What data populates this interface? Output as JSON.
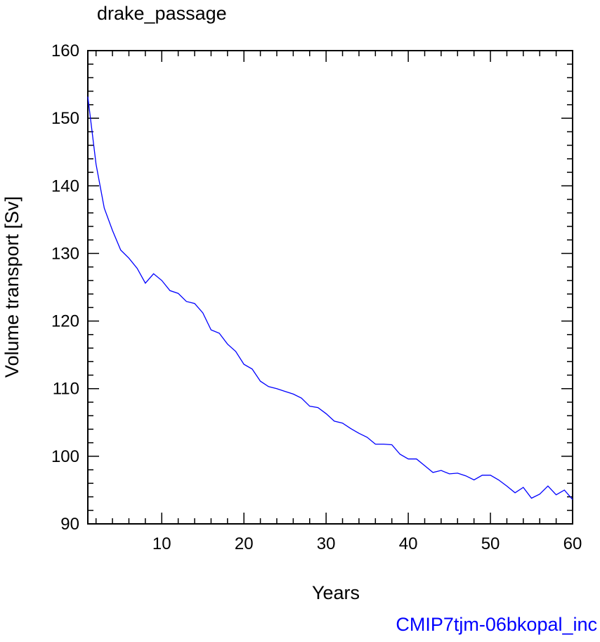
{
  "chart_data": {
    "type": "line",
    "title": "drake_passage",
    "xlabel": "Years",
    "ylabel": "Volume transport [Sv]",
    "xlim": [
      1,
      60
    ],
    "ylim": [
      90,
      160
    ],
    "xticks": [
      10,
      20,
      30,
      40,
      50,
      60
    ],
    "yticks": [
      90,
      100,
      110,
      120,
      130,
      140,
      150,
      160
    ],
    "xtick_labels": [
      "10",
      "20",
      "30",
      "40",
      "50",
      "60"
    ],
    "ytick_labels": [
      "90",
      "100",
      "110",
      "120",
      "130",
      "140",
      "150",
      "160"
    ],
    "x_minor_step": 2,
    "y_minor_step": 2,
    "grid": false,
    "annotation": "CMIP7tjm-06bkopal_inc",
    "colors": {
      "line": "#0000ff",
      "annotation": "#0000ff",
      "axes": "#000000"
    },
    "series": [
      {
        "x": [
          1,
          2,
          3,
          4,
          5,
          6,
          7,
          8,
          9,
          10,
          11,
          12,
          13,
          14,
          15,
          16,
          17,
          18,
          19,
          20,
          21,
          22,
          23,
          24,
          25,
          26,
          27,
          28,
          29,
          30,
          31,
          32,
          33,
          34,
          35,
          36,
          37,
          38,
          39,
          40,
          41,
          42,
          43,
          44,
          45,
          46,
          47,
          48,
          49,
          50,
          51,
          52,
          53,
          54,
          55,
          56,
          57,
          58,
          59,
          60
        ],
        "values": [
          153.2,
          143.2,
          136.7,
          133.4,
          130.5,
          129.3,
          127.8,
          125.6,
          127.0,
          126.0,
          124.5,
          124.1,
          122.9,
          122.6,
          121.2,
          118.7,
          118.2,
          116.6,
          115.5,
          113.6,
          112.9,
          111.1,
          110.3,
          110.0,
          109.6,
          109.2,
          108.6,
          107.4,
          107.2,
          106.3,
          105.2,
          104.9,
          104.1,
          103.4,
          102.8,
          101.8,
          101.8,
          101.7,
          100.3,
          99.6,
          99.6,
          98.6,
          97.6,
          97.9,
          97.4,
          97.5,
          97.1,
          96.5,
          97.2,
          97.2,
          96.5,
          95.6,
          94.6,
          95.4,
          93.8,
          94.4,
          95.6,
          94.3,
          95.0,
          93.6
        ]
      }
    ]
  }
}
